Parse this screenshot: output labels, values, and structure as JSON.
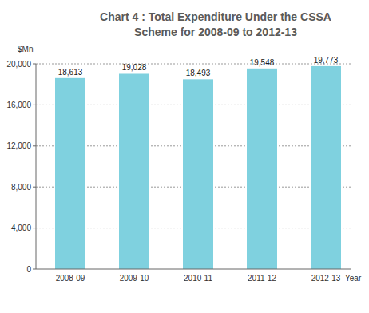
{
  "chart_data": {
    "type": "bar",
    "title": "Chart 4 : Total Expenditure Under the CSSA Scheme for 2008-09 to 2012-13",
    "y_label": "$Mn",
    "x_label": "Year",
    "categories": [
      "2008-09",
      "2009-10",
      "2010-11",
      "2011-12",
      "2012-13"
    ],
    "values": [
      18613,
      19028,
      18493,
      19548,
      19773
    ],
    "value_labels": [
      "18,613",
      "19,028",
      "18,493",
      "19,548",
      "19,773"
    ],
    "color": "#7fd1df",
    "ylim": [
      0,
      20000
    ],
    "yticks": [
      0,
      {
        "value": 4000,
        "label": "4,000"
      },
      {
        "value": 8000,
        "label": "8,000"
      },
      {
        "value": 12000,
        "label": "12,000"
      },
      {
        "value": 16000,
        "label": "16,000"
      },
      {
        "value": 20000,
        "label": "20,000"
      }
    ],
    "grid": true,
    "data_labels": true
  }
}
